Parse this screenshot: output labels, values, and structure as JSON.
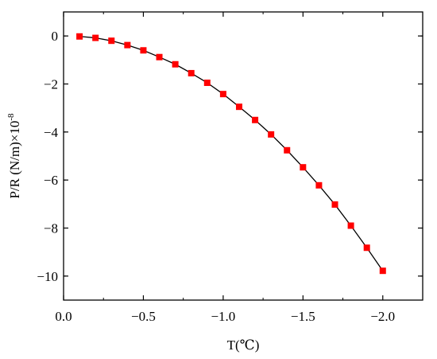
{
  "chart_data": {
    "type": "line",
    "xlabel": "T(℃)",
    "ylabel": "P/R (N/m)×10",
    "ylabel_exponent": "-8",
    "xlim": [
      0.0,
      -2.25
    ],
    "ylim": [
      -11,
      1
    ],
    "x_ticks": [
      {
        "value": 0.0,
        "label": "0.0"
      },
      {
        "value": -0.5,
        "label": "−0.5"
      },
      {
        "value": -1.0,
        "label": "−1.0"
      },
      {
        "value": -1.5,
        "label": "−1.5"
      },
      {
        "value": -2.0,
        "label": "−2.0"
      }
    ],
    "y_ticks": [
      {
        "value": 0,
        "label": "0"
      },
      {
        "value": -2,
        "label": "−2"
      },
      {
        "value": -4,
        "label": "−4"
      },
      {
        "value": -6,
        "label": "−6"
      },
      {
        "value": -8,
        "label": "−8"
      },
      {
        "value": -10,
        "label": "−10"
      }
    ],
    "grid": false,
    "series": [
      {
        "color": "#ff0000",
        "line_color": "#000000",
        "marker": "square",
        "points": [
          {
            "x": -0.1,
            "y": -0.02
          },
          {
            "x": -0.2,
            "y": -0.08
          },
          {
            "x": -0.3,
            "y": -0.2
          },
          {
            "x": -0.4,
            "y": -0.38
          },
          {
            "x": -0.5,
            "y": -0.6
          },
          {
            "x": -0.6,
            "y": -0.88
          },
          {
            "x": -0.7,
            "y": -1.18
          },
          {
            "x": -0.8,
            "y": -1.55
          },
          {
            "x": -0.9,
            "y": -1.95
          },
          {
            "x": -1.0,
            "y": -2.42
          },
          {
            "x": -1.1,
            "y": -2.95
          },
          {
            "x": -1.2,
            "y": -3.5
          },
          {
            "x": -1.3,
            "y": -4.1
          },
          {
            "x": -1.4,
            "y": -4.76
          },
          {
            "x": -1.5,
            "y": -5.47
          },
          {
            "x": -1.6,
            "y": -6.22
          },
          {
            "x": -1.7,
            "y": -7.02
          },
          {
            "x": -1.8,
            "y": -7.9
          },
          {
            "x": -1.9,
            "y": -8.82
          },
          {
            "x": -2.0,
            "y": -9.78
          }
        ]
      }
    ]
  }
}
